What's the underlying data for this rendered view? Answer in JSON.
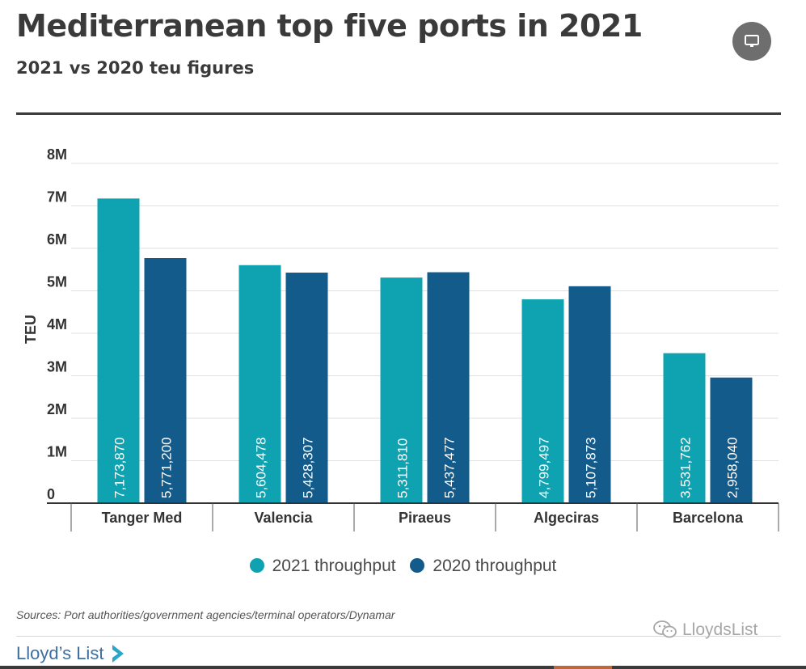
{
  "header": {
    "title": "Mediterranean top five ports in 2021",
    "subtitle": "2021 vs 2020 teu figures",
    "display_icon": "monitor-icon"
  },
  "chart_data": {
    "type": "bar",
    "title": "Mediterranean top five ports in 2021",
    "subtitle": "2021 vs 2020 teu figures",
    "xlabel": "",
    "ylabel": "TEU",
    "ylim": [
      0,
      8000000
    ],
    "yticks": [
      0,
      1000000,
      2000000,
      3000000,
      4000000,
      5000000,
      6000000,
      7000000,
      8000000
    ],
    "ytick_labels": [
      "0",
      "1M",
      "2M",
      "3M",
      "4M",
      "5M",
      "6M",
      "7M",
      "8M"
    ],
    "grid": true,
    "legend_position": "bottom",
    "categories": [
      "Tanger Med",
      "Valencia",
      "Piraeus",
      "Algeciras",
      "Barcelona"
    ],
    "series": [
      {
        "name": "2021 throughput",
        "color": "#0fa3b1",
        "values": [
          7173870,
          5604478,
          5311810,
          4799497,
          3531762
        ],
        "labels": [
          "7,173,870",
          "5,604,478",
          "5,311,810",
          "4,799,497",
          "3,531,762"
        ]
      },
      {
        "name": "2020 throughput",
        "color": "#135b8a",
        "values": [
          5771200,
          5428307,
          5437477,
          5107873,
          2958040
        ],
        "labels": [
          "5,771,200",
          "5,428,307",
          "5,437,477",
          "5,107,873",
          "2,958,040"
        ]
      }
    ]
  },
  "footer": {
    "source": "Sources: Port authorities/government agencies/terminal operators/Dynamar",
    "logo_text": "Lloyd’s List",
    "watermark": "LloydsList",
    "watermark_icon": "wechat-icon"
  }
}
